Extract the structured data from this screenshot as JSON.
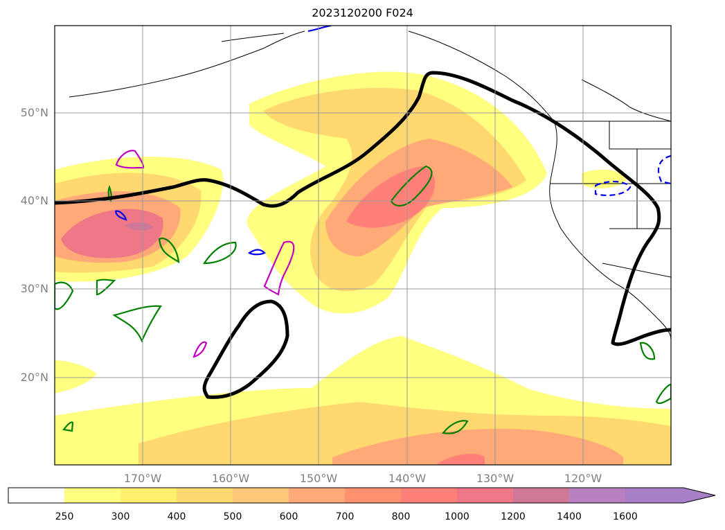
{
  "title": "2023120200 F024",
  "lat_labels": [
    "50°N",
    "40°N",
    "30°N",
    "20°N"
  ],
  "lon_labels": [
    "170°W",
    "160°W",
    "150°W",
    "140°W",
    "130°W",
    "120°W"
  ],
  "colorbar": {
    "ticks": [
      "250",
      "300",
      "400",
      "500",
      "600",
      "700",
      "800",
      "1000",
      "1200",
      "1400",
      "1600"
    ],
    "colors": [
      "#ffffff",
      "#ffff80",
      "#fff070",
      "#ffd870",
      "#ffc878",
      "#ffa878",
      "#ff9070",
      "#ff8078",
      "#ee7888",
      "#d07898",
      "#b880c0",
      "#a880c8"
    ]
  }
}
